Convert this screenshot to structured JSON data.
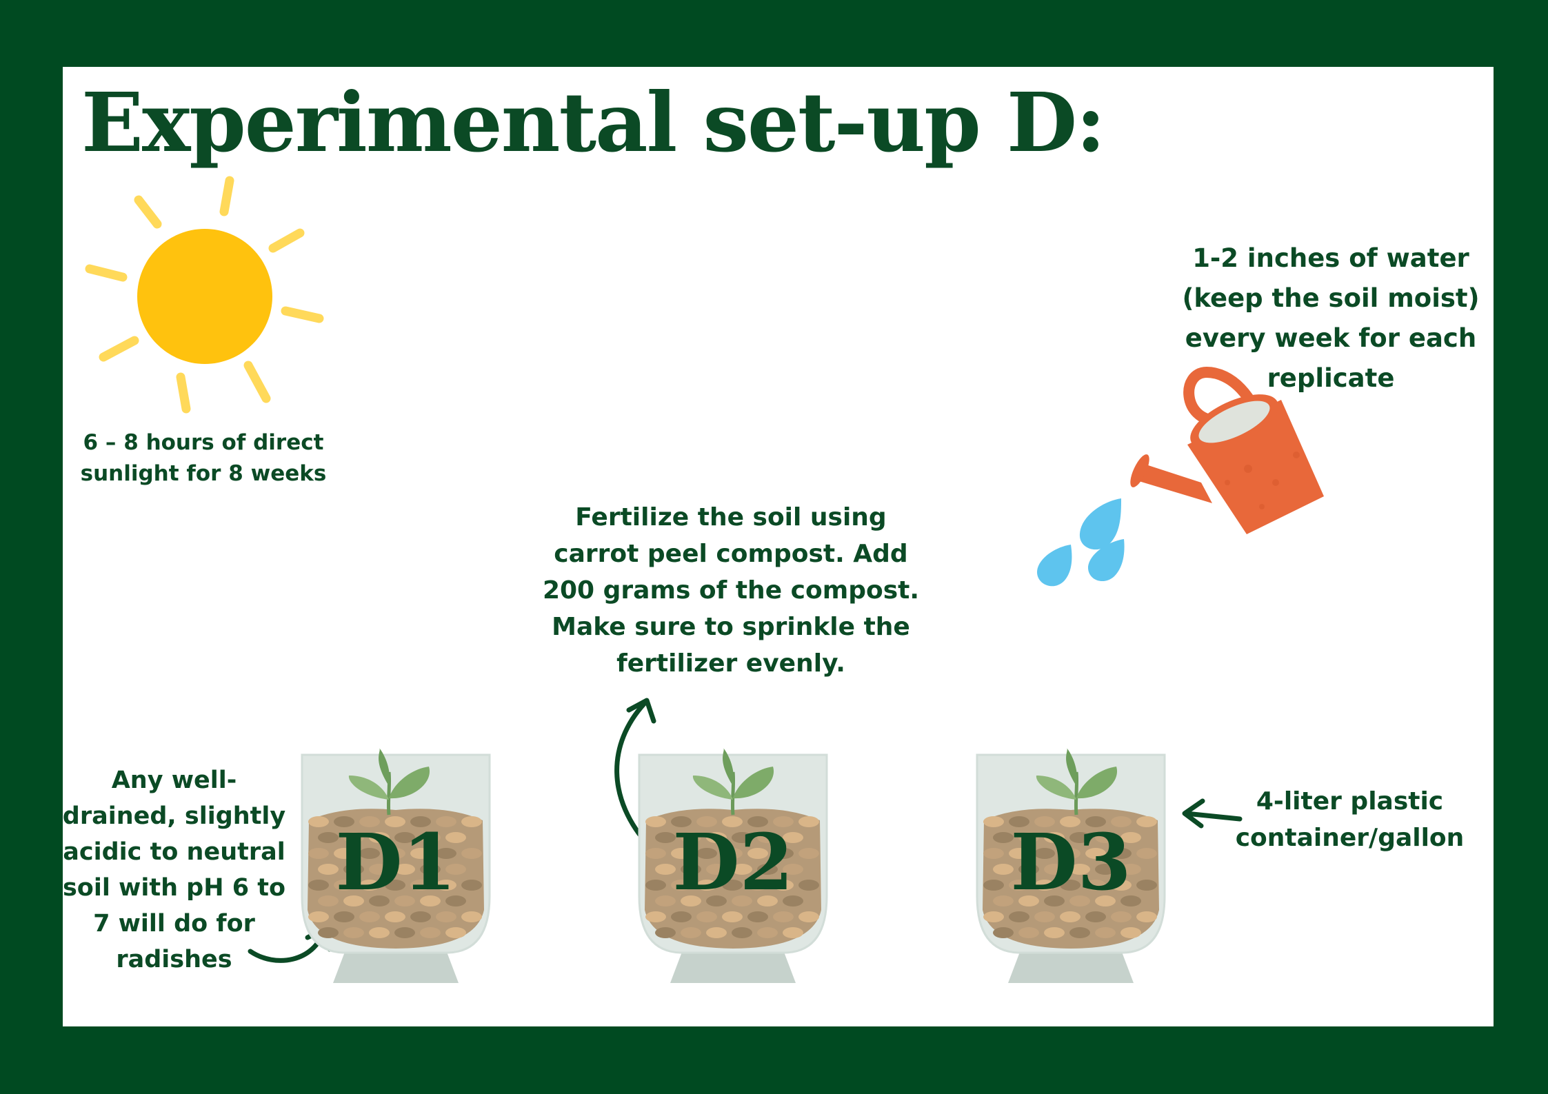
{
  "title": "Experimental set-up D:",
  "sunlight": {
    "icon": "sun-icon",
    "text": "6 – 8 hours of direct\nsunlight for 8 weeks"
  },
  "watering": {
    "icon": "watering-can-icon",
    "text": "1-2 inches of water\n(keep the soil moist)\nevery week  for each\nreplicate"
  },
  "fertilizer": {
    "text": "Fertilize the soil using\ncarrot peel compost. Add\n200 grams of the compost.\nMake sure to sprinkle the\nfertilizer evenly."
  },
  "soil": {
    "text": "Any well-\ndrained, slightly\nacidic to neutral\nsoil with pH 6 to\n7 will do for\nradishes"
  },
  "container": {
    "text": "4-liter plastic\ncontainer/gallon"
  },
  "pots": [
    {
      "label": "D1"
    },
    {
      "label": "D2"
    },
    {
      "label": "D3"
    }
  ],
  "colors": {
    "border": "#004a21",
    "text": "#0b4a25",
    "sun": "#ffc20e",
    "sun_ray": "#ffd95a",
    "can": "#e8683a",
    "water_drop": "#5ec4ee",
    "soil": "#b59a78",
    "container": "#dfe7e3"
  }
}
